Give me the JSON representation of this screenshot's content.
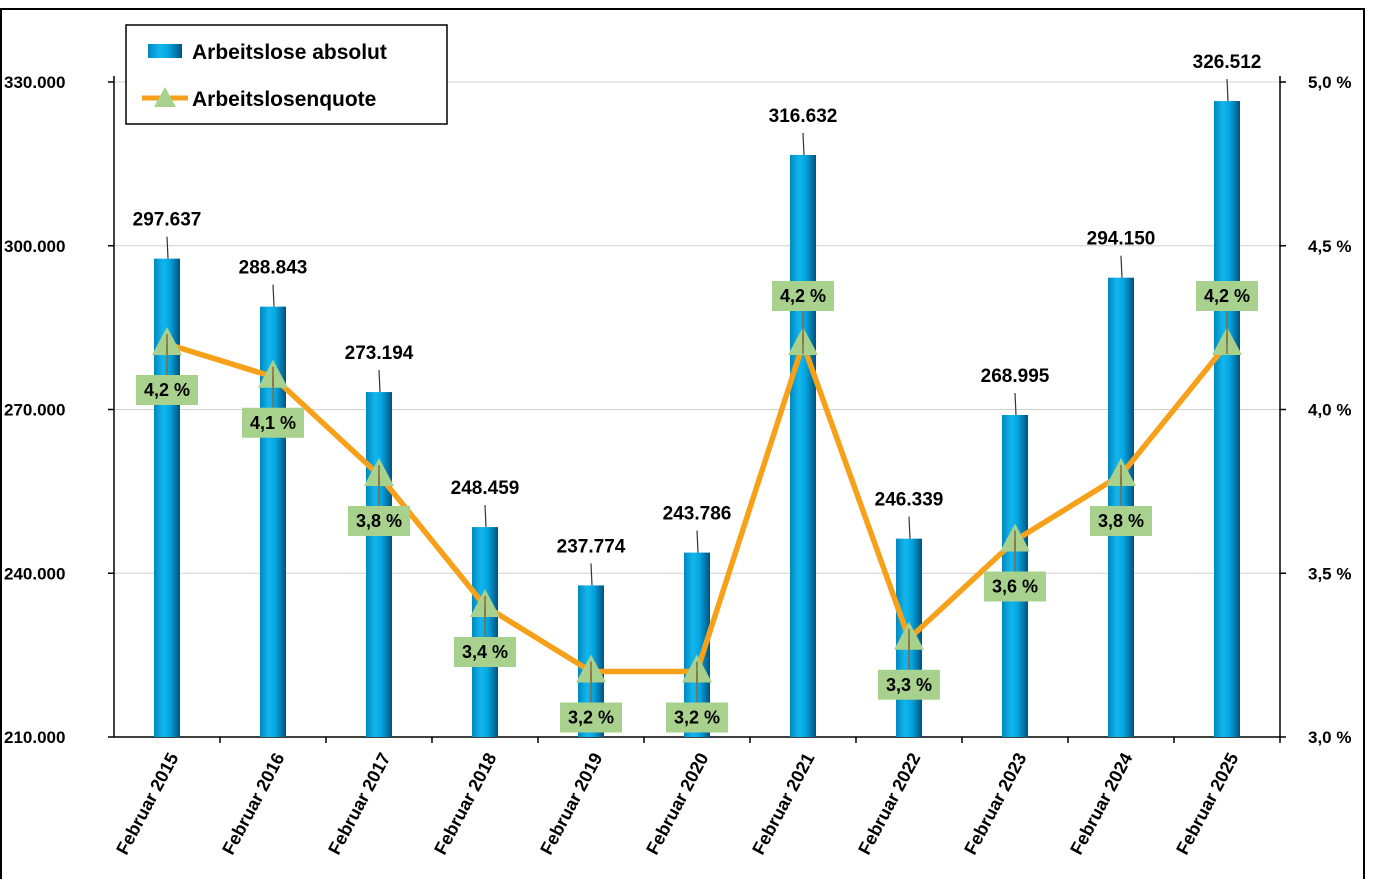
{
  "chart_data": {
    "type": "bar",
    "categories": [
      "Februar 2015",
      "Februar 2016",
      "Februar 2017",
      "Februar 2018",
      "Februar 2019",
      "Februar 2020",
      "Februar 2021",
      "Februar 2022",
      "Februar 2023",
      "Februar 2024",
      "Februar 2025"
    ],
    "series": [
      {
        "name": "Arbeitslose absolut",
        "type": "bar",
        "axis": "left",
        "values": [
          297637,
          288843,
          273194,
          248459,
          237774,
          243786,
          316632,
          246339,
          268995,
          294150,
          326512
        ],
        "labels": [
          "297.637",
          "288.843",
          "273.194",
          "248.459",
          "237.774",
          "243.786",
          "316.632",
          "246.339",
          "268.995",
          "294.150",
          "326.512"
        ],
        "color": "#00A8E0"
      },
      {
        "name": "Arbeitslosenquote",
        "type": "line",
        "axis": "right",
        "values": [
          4.2,
          4.1,
          3.8,
          3.4,
          3.2,
          3.2,
          4.2,
          3.3,
          3.6,
          3.8,
          4.2
        ],
        "labels": [
          "4,2 %",
          "4,1 %",
          "3,8 %",
          "3,4 %",
          "3,2 %",
          "3,2 %",
          "4,2 %",
          "3,3 %",
          "3,6 %",
          "3,8 %",
          "4,2 %"
        ],
        "color": "#F7A11A",
        "marker_color": "#A9D18E"
      }
    ],
    "y_left": {
      "lim": [
        210000,
        330000
      ],
      "ticks": [
        "210.000",
        "240.000",
        "270.000",
        "300.000",
        "330.000"
      ],
      "tick_values": [
        210000,
        240000,
        270000,
        300000,
        330000
      ]
    },
    "y_right": {
      "lim": [
        3.0,
        5.0
      ],
      "ticks": [
        "3,0 %",
        "3,5 %",
        "4,0 %",
        "4,5 %",
        "5,0 %"
      ],
      "tick_values": [
        3.0,
        3.5,
        4.0,
        4.5,
        5.0
      ]
    },
    "grid": true,
    "legend_position": "top-left"
  }
}
